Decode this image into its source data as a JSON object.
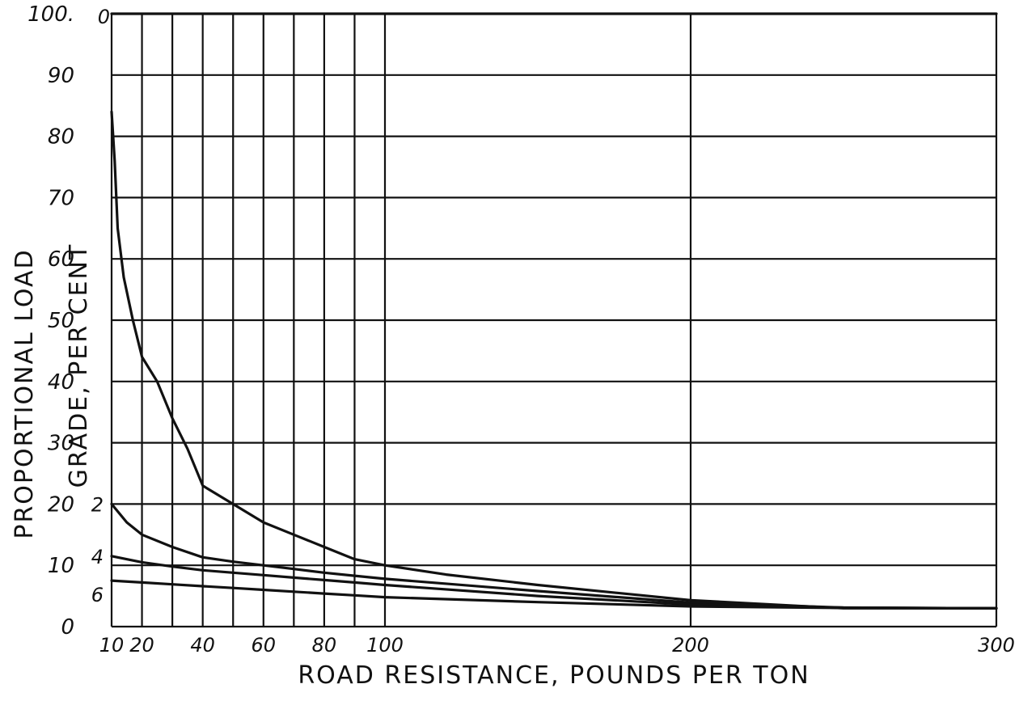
{
  "chart_data": {
    "type": "line",
    "title": "",
    "xlabel": "ROAD RESISTANCE, POUNDS PER TON",
    "ylabel": "PROPORTIONAL LOAD",
    "ylabel2": "GRADE, PER CENT",
    "xlim": [
      10,
      300
    ],
    "ylim": [
      0,
      100
    ],
    "grid": true,
    "x_gridlines": [
      10,
      20,
      30,
      40,
      50,
      60,
      70,
      80,
      90,
      100,
      200,
      300
    ],
    "y_gridlines": [
      0,
      10,
      20,
      30,
      40,
      50,
      60,
      70,
      80,
      90,
      100
    ],
    "x_tick_labels": [
      {
        "x": 10,
        "label": "10"
      },
      {
        "x": 20,
        "label": "20"
      },
      {
        "x": 40,
        "label": "40"
      },
      {
        "x": 60,
        "label": "60"
      },
      {
        "x": 80,
        "label": "80"
      },
      {
        "x": 100,
        "label": "100"
      },
      {
        "x": 200,
        "label": "200"
      },
      {
        "x": 300,
        "label": "300"
      }
    ],
    "y_tick_labels": [
      {
        "y": 0,
        "label": "0"
      },
      {
        "y": 10,
        "label": "10"
      },
      {
        "y": 20,
        "label": "20"
      },
      {
        "y": 30,
        "label": "30"
      },
      {
        "y": 40,
        "label": "40"
      },
      {
        "y": 50,
        "label": "50"
      },
      {
        "y": 60,
        "label": "60"
      },
      {
        "y": 70,
        "label": "70"
      },
      {
        "y": 80,
        "label": "80"
      },
      {
        "y": 90,
        "label": "90"
      },
      {
        "y": 100,
        "label": "100."
      }
    ],
    "series": [
      {
        "name": "0",
        "label_at": [
          10,
          100
        ],
        "x": [
          10,
          11,
          12,
          14,
          17,
          20,
          25,
          30,
          35,
          40,
          50,
          60,
          70,
          80,
          90,
          100,
          120,
          150,
          200,
          250,
          300
        ],
        "y": [
          100,
          100,
          100,
          100,
          100,
          100,
          100,
          100,
          100,
          100,
          100,
          100,
          100,
          100,
          100,
          100,
          100,
          100,
          100,
          100,
          100
        ]
      },
      {
        "name": "",
        "label_at": null,
        "x": [
          10,
          11,
          12,
          14,
          17,
          20,
          25,
          30,
          35,
          40,
          50,
          60,
          70,
          80,
          90,
          100,
          120,
          150,
          200,
          250,
          300
        ],
        "y": [
          84,
          76,
          65,
          57,
          50,
          44,
          40,
          34,
          29,
          23,
          20,
          17,
          15,
          13,
          11,
          10,
          8.5,
          6.8,
          4.3,
          3,
          3
        ]
      },
      {
        "name": "2",
        "label_at": [
          10,
          20
        ],
        "x": [
          10,
          15,
          20,
          30,
          40,
          50,
          60,
          70,
          80,
          90,
          100,
          150,
          200,
          250,
          300
        ],
        "y": [
          20,
          17,
          15,
          13,
          11.3,
          10.6,
          10,
          9.4,
          8.8,
          8.3,
          7.8,
          5.8,
          3.9,
          3.1,
          3
        ]
      },
      {
        "name": "4",
        "label_at": [
          10,
          11.5
        ],
        "x": [
          10,
          20,
          30,
          40,
          50,
          60,
          70,
          80,
          90,
          100,
          150,
          200,
          250,
          300
        ],
        "y": [
          11.5,
          10.5,
          9.8,
          9.2,
          8.8,
          8.4,
          8,
          7.6,
          7.2,
          6.8,
          5,
          3.6,
          3.1,
          3
        ]
      },
      {
        "name": "6",
        "label_at": [
          10,
          7.5
        ],
        "x": [
          10,
          20,
          30,
          40,
          50,
          60,
          70,
          80,
          90,
          100,
          150,
          200,
          250,
          300
        ],
        "y": [
          7.5,
          7.2,
          6.9,
          6.6,
          6.3,
          6,
          5.7,
          5.4,
          5.1,
          4.8,
          4,
          3.3,
          3.05,
          3
        ]
      }
    ]
  }
}
